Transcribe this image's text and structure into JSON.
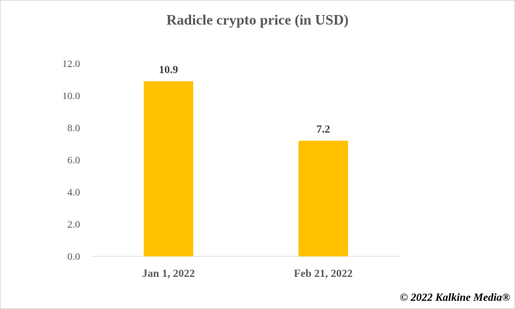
{
  "chart_data": {
    "type": "bar",
    "title": "Radicle crypto price (in USD)",
    "xlabel": "",
    "ylabel": "",
    "categories": [
      "Jan 1, 2022",
      "Feb 21, 2022"
    ],
    "values": [
      10.9,
      7.2
    ],
    "data_labels": [
      "10.9",
      "7.2"
    ],
    "ylim": [
      0,
      12
    ],
    "yticks": [
      "0.0",
      "2.0",
      "4.0",
      "6.0",
      "8.0",
      "10.0",
      "12.0"
    ],
    "grid": false,
    "legend": "none",
    "bar_color": "#FFC000"
  },
  "watermark": "© 2022 Kalkine Media®"
}
